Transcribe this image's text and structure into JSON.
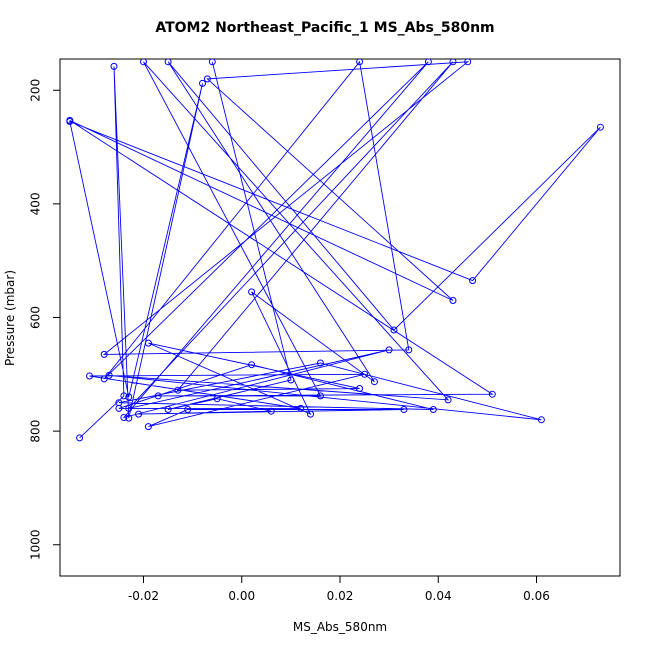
{
  "chart_data": {
    "type": "line",
    "title": "ATOM2 Northeast_Pacific_1 MS_Abs_580nm",
    "xlabel": "MS_Abs_580nm",
    "ylabel": "Pressure (mbar)",
    "xlim": [
      -0.037,
      0.077
    ],
    "ylim": [
      1055,
      145
    ],
    "y_reversed": true,
    "grid": false,
    "xticks": [
      -0.02,
      0.0,
      0.02,
      0.04,
      0.06
    ],
    "xtick_labels": [
      "-0.02",
      "0.00",
      "0.02",
      "0.04",
      "0.06"
    ],
    "yticks": [
      200,
      400,
      600,
      800,
      1000
    ],
    "ytick_labels": [
      "200",
      "400",
      "600",
      "800",
      "1000"
    ],
    "series_color": "#0000ff",
    "marker": "open-circle",
    "points": [
      {
        "x": -0.033,
        "y": 812
      },
      {
        "x": -0.024,
        "y": 738
      },
      {
        "x": -0.026,
        "y": 158
      },
      {
        "x": -0.023,
        "y": 777
      },
      {
        "x": -0.008,
        "y": 188
      },
      {
        "x": -0.023,
        "y": 740
      },
      {
        "x": -0.035,
        "y": 255
      },
      {
        "x": 0.047,
        "y": 535
      },
      {
        "x": 0.073,
        "y": 265
      },
      {
        "x": 0.031,
        "y": 622
      },
      {
        "x": -0.015,
        "y": 150
      },
      {
        "x": 0.027,
        "y": 713
      },
      {
        "x": 0.002,
        "y": 555
      },
      {
        "x": 0.014,
        "y": 770
      },
      {
        "x": -0.019,
        "y": 645
      },
      {
        "x": 0.024,
        "y": 725
      },
      {
        "x": -0.013,
        "y": 728
      },
      {
        "x": 0.043,
        "y": 150
      },
      {
        "x": -0.023,
        "y": 760
      },
      {
        "x": 0.03,
        "y": 657
      },
      {
        "x": -0.024,
        "y": 776
      },
      {
        "x": 0.038,
        "y": 150
      },
      {
        "x": -0.028,
        "y": 708
      },
      {
        "x": 0.024,
        "y": 150
      },
      {
        "x": 0.034,
        "y": 657
      },
      {
        "x": -0.028,
        "y": 665
      },
      {
        "x": 0.046,
        "y": 150
      },
      {
        "x": -0.007,
        "y": 180
      },
      {
        "x": 0.043,
        "y": 570
      },
      {
        "x": -0.035,
        "y": 253
      },
      {
        "x": 0.051,
        "y": 735
      },
      {
        "x": -0.017,
        "y": 738
      },
      {
        "x": 0.016,
        "y": 738
      },
      {
        "x": -0.02,
        "y": 150
      },
      {
        "x": 0.042,
        "y": 745
      },
      {
        "x": -0.027,
        "y": 702
      },
      {
        "x": 0.061,
        "y": 780
      },
      {
        "x": 0.016,
        "y": 680
      },
      {
        "x": -0.025,
        "y": 750
      },
      {
        "x": 0.039,
        "y": 762
      },
      {
        "x": 0.002,
        "y": 683
      },
      {
        "x": -0.025,
        "y": 760
      },
      {
        "x": 0.012,
        "y": 760
      },
      {
        "x": -0.031,
        "y": 703
      },
      {
        "x": 0.025,
        "y": 700
      },
      {
        "x": -0.019,
        "y": 792
      },
      {
        "x": -0.011,
        "y": 762
      },
      {
        "x": 0.033,
        "y": 762
      },
      {
        "x": -0.021,
        "y": 770
      },
      {
        "x": 0.006,
        "y": 765
      },
      {
        "x": -0.005,
        "y": 743
      },
      {
        "x": -0.015,
        "y": 762
      },
      {
        "x": 0.01,
        "y": 710
      },
      {
        "x": -0.006,
        "y": 150
      }
    ]
  }
}
